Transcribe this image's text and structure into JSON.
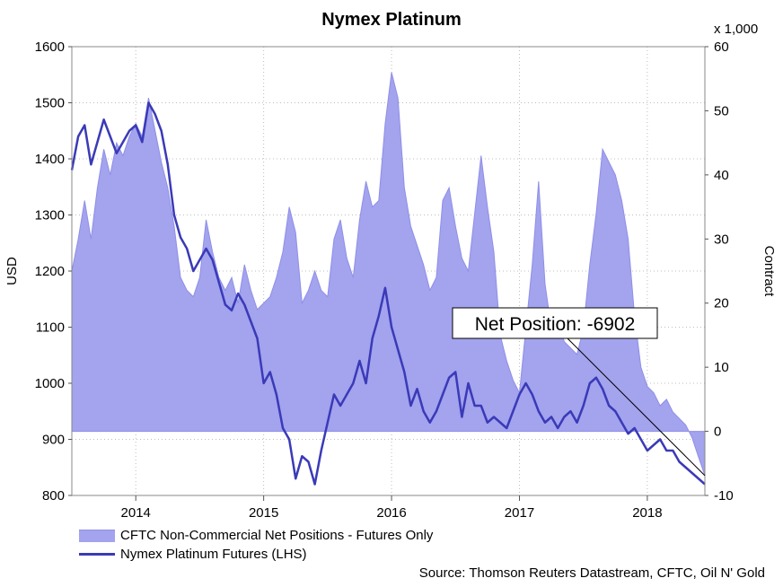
{
  "colors": {
    "area_fill": "#a3a3ee",
    "area_edge": "#8f8fe8",
    "line": "#3a3ab8",
    "grid": "#bdbdbd",
    "arrow": "#000000"
  },
  "legend": {
    "area_label": "CFTC Non-Commercial Net Positions - Futures Only",
    "line_label": "Nymex Platinum Futures (LHS)"
  },
  "source": "Source: Thomson Reuters Datastream, CFTC, Oil N' Gold",
  "chart_data": {
    "type": "line",
    "title": "Nymex Platinum",
    "ylabel": "USD",
    "y2label": "Contract",
    "y2unit": "x 1,000",
    "ylim": [
      800,
      1600
    ],
    "y2lim": [
      -10,
      60
    ],
    "yticks": [
      800,
      900,
      1000,
      1100,
      1200,
      1300,
      1400,
      1500,
      1600
    ],
    "y2ticks": [
      -10,
      0,
      10,
      20,
      30,
      40,
      50,
      60
    ],
    "xlim": [
      2013.5,
      2018.45
    ],
    "xticks": [
      "2014",
      "2015",
      "2016",
      "2017",
      "2018"
    ],
    "grid": true,
    "annotation": {
      "text": "Net Position: -6902",
      "value": -6902
    },
    "series": [
      {
        "name": "CFTC Non-Commercial Net Positions - Futures Only",
        "axis": "right",
        "type": "area",
        "x": [
          2013.5,
          2013.55,
          2013.6,
          2013.65,
          2013.7,
          2013.75,
          2013.8,
          2013.85,
          2013.9,
          2013.95,
          2014.0,
          2014.05,
          2014.1,
          2014.15,
          2014.2,
          2014.25,
          2014.3,
          2014.35,
          2014.4,
          2014.45,
          2014.5,
          2014.55,
          2014.6,
          2014.65,
          2014.7,
          2014.75,
          2014.8,
          2014.85,
          2014.9,
          2014.95,
          2015.0,
          2015.05,
          2015.1,
          2015.15,
          2015.2,
          2015.25,
          2015.3,
          2015.35,
          2015.4,
          2015.45,
          2015.5,
          2015.55,
          2015.6,
          2015.65,
          2015.7,
          2015.75,
          2015.8,
          2015.85,
          2015.9,
          2015.95,
          2016.0,
          2016.05,
          2016.1,
          2016.15,
          2016.2,
          2016.25,
          2016.3,
          2016.35,
          2016.4,
          2016.45,
          2016.5,
          2016.55,
          2016.6,
          2016.65,
          2016.7,
          2016.75,
          2016.8,
          2016.85,
          2016.9,
          2016.95,
          2017.0,
          2017.05,
          2017.1,
          2017.15,
          2017.2,
          2017.25,
          2017.3,
          2017.35,
          2017.4,
          2017.45,
          2017.5,
          2017.55,
          2017.6,
          2017.65,
          2017.7,
          2017.75,
          2017.8,
          2017.85,
          2017.9,
          2017.95,
          2018.0,
          2018.05,
          2018.1,
          2018.15,
          2018.2,
          2018.25,
          2018.3,
          2018.35,
          2018.4,
          2018.45
        ],
        "values": [
          25,
          30,
          36,
          30,
          38,
          44,
          40,
          45,
          43,
          46,
          48,
          46,
          52,
          47,
          42,
          38,
          32,
          24,
          22,
          21,
          24,
          33,
          28,
          24,
          22,
          24,
          20,
          26,
          22,
          19,
          20,
          21,
          24,
          28,
          35,
          31,
          20,
          22,
          25,
          22,
          21,
          30,
          33,
          27,
          24,
          33,
          39,
          35,
          36,
          48,
          56,
          52,
          38,
          32,
          29,
          26,
          22,
          24,
          36,
          38,
          32,
          27,
          25,
          34,
          43,
          35,
          28,
          15,
          11,
          8,
          6,
          16,
          26,
          39,
          23,
          16,
          18,
          14,
          13,
          12,
          16,
          26,
          34,
          44,
          42,
          40,
          36,
          30,
          18,
          10,
          7,
          6,
          4,
          5,
          3,
          2,
          1,
          -1,
          -4,
          -6.9
        ]
      },
      {
        "name": "Nymex Platinum Futures (LHS)",
        "axis": "left",
        "type": "line",
        "x": [
          2013.5,
          2013.55,
          2013.6,
          2013.65,
          2013.7,
          2013.75,
          2013.8,
          2013.85,
          2013.9,
          2013.95,
          2014.0,
          2014.05,
          2014.1,
          2014.15,
          2014.2,
          2014.25,
          2014.3,
          2014.35,
          2014.4,
          2014.45,
          2014.5,
          2014.55,
          2014.6,
          2014.65,
          2014.7,
          2014.75,
          2014.8,
          2014.85,
          2014.9,
          2014.95,
          2015.0,
          2015.05,
          2015.1,
          2015.15,
          2015.2,
          2015.25,
          2015.3,
          2015.35,
          2015.4,
          2015.45,
          2015.5,
          2015.55,
          2015.6,
          2015.65,
          2015.7,
          2015.75,
          2015.8,
          2015.85,
          2015.9,
          2015.95,
          2016.0,
          2016.05,
          2016.1,
          2016.15,
          2016.2,
          2016.25,
          2016.3,
          2016.35,
          2016.4,
          2016.45,
          2016.5,
          2016.55,
          2016.6,
          2016.65,
          2016.7,
          2016.75,
          2016.8,
          2016.85,
          2016.9,
          2016.95,
          2017.0,
          2017.05,
          2017.1,
          2017.15,
          2017.2,
          2017.25,
          2017.3,
          2017.35,
          2017.4,
          2017.45,
          2017.5,
          2017.55,
          2017.6,
          2017.65,
          2017.7,
          2017.75,
          2017.8,
          2017.85,
          2017.9,
          2017.95,
          2018.0,
          2018.05,
          2018.1,
          2018.15,
          2018.2,
          2018.25,
          2018.3,
          2018.35,
          2018.4,
          2018.45
        ],
        "values": [
          1380,
          1440,
          1460,
          1390,
          1430,
          1470,
          1440,
          1410,
          1430,
          1450,
          1460,
          1430,
          1500,
          1480,
          1450,
          1390,
          1300,
          1260,
          1240,
          1200,
          1220,
          1240,
          1220,
          1180,
          1140,
          1130,
          1160,
          1140,
          1110,
          1080,
          1000,
          1020,
          980,
          920,
          900,
          830,
          870,
          860,
          820,
          880,
          930,
          980,
          960,
          980,
          1000,
          1040,
          1000,
          1080,
          1120,
          1170,
          1100,
          1060,
          1020,
          960,
          990,
          950,
          930,
          950,
          980,
          1010,
          1020,
          940,
          1000,
          960,
          960,
          930,
          940,
          930,
          920,
          950,
          980,
          1000,
          980,
          950,
          930,
          940,
          920,
          940,
          950,
          930,
          960,
          1000,
          1010,
          990,
          960,
          950,
          930,
          910,
          920,
          900,
          880,
          890,
          900,
          880,
          880,
          860,
          850,
          840,
          830,
          820
        ]
      }
    ]
  }
}
